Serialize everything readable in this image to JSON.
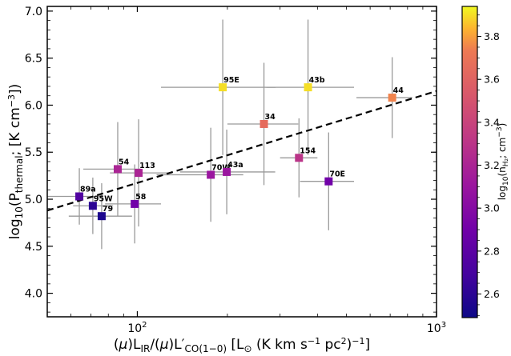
{
  "chart_data": {
    "type": "scatter",
    "x_scale": "log",
    "xlim": [
      50,
      1000
    ],
    "ylim": [
      3.75,
      7.05
    ],
    "xlabel": "(μ)L_IR/(μ)L′_CO(1−0) [L_⊙ (K km s^−1 pc^2)^−1]",
    "ylabel": "log10(P_thermal; [K cm^−3])",
    "x_tick_labels": [
      "10^2",
      "10^3"
    ],
    "x_ticks": [
      100,
      1000
    ],
    "y_ticks": [
      4.0,
      4.5,
      5.0,
      5.5,
      6.0,
      6.5,
      7.0
    ],
    "y_tick_labels": [
      "4.0",
      "4.5",
      "5.0",
      "5.5",
      "6.0",
      "6.5",
      "7.0"
    ],
    "colorbar": {
      "label": "log10(n_H2; cm^−3)",
      "range": [
        2.49,
        3.94
      ],
      "ticks": [
        2.6,
        2.8,
        3.0,
        3.2,
        3.4,
        3.6,
        3.8
      ],
      "tick_labels": [
        "2.6",
        "2.8",
        "3.0",
        "3.2",
        "3.4",
        "3.6",
        "3.8"
      ],
      "colormap": "plasma"
    },
    "fit_line": {
      "style": "dashed",
      "color": "#000000",
      "x": [
        50,
        1000
      ],
      "y": [
        4.88,
        6.15
      ]
    },
    "points": [
      {
        "label": "89a",
        "x": 64,
        "y": 5.03,
        "xerr": [
          14,
          12
        ],
        "yerr": [
          0.3,
          0.3
        ],
        "c": 2.75
      },
      {
        "label": "95W",
        "x": 71,
        "y": 4.93,
        "xerr": [
          10,
          12
        ],
        "yerr": [
          0.3,
          0.3
        ],
        "c": 2.6
      },
      {
        "label": "79",
        "x": 76,
        "y": 4.82,
        "xerr": [
          17,
          20
        ],
        "yerr": [
          0.35,
          0.35
        ],
        "c": 2.55
      },
      {
        "label": "58",
        "x": 98,
        "y": 4.95,
        "xerr": [
          20,
          22
        ],
        "yerr": [
          0.42,
          0.42
        ],
        "c": 2.9
      },
      {
        "label": "54",
        "x": 86,
        "y": 5.32,
        "xerr": [
          20,
          17
        ],
        "yerr": [
          0.5,
          0.5
        ],
        "c": 3.2
      },
      {
        "label": "113",
        "x": 101,
        "y": 5.28,
        "xerr": [
          20,
          30
        ],
        "yerr": [
          0.57,
          0.57
        ],
        "c": 3.2
      },
      {
        "label": "70W",
        "x": 176,
        "y": 5.26,
        "xerr": [
          60,
          50
        ],
        "yerr": [
          0.5,
          0.5
        ],
        "c": 3.1
      },
      {
        "label": "43a",
        "x": 199,
        "y": 5.29,
        "xerr": [
          60,
          90
        ],
        "yerr": [
          0.45,
          0.45
        ],
        "c": 3.1
      },
      {
        "label": "95E",
        "x": 193,
        "y": 6.19,
        "xerr": [
          73,
          97
        ],
        "yerr": [
          0.72,
          0.72
        ],
        "c": 3.9
      },
      {
        "label": "43b",
        "x": 372,
        "y": 6.19,
        "xerr": [
          102,
          158
        ],
        "yerr": [
          0.72,
          0.72
        ],
        "c": 3.9
      },
      {
        "label": "34",
        "x": 265,
        "y": 5.8,
        "xerr": [
          65,
          80
        ],
        "yerr": [
          0.65,
          0.65
        ],
        "c": 3.65
      },
      {
        "label": "154",
        "x": 347,
        "y": 5.44,
        "xerr": [
          47,
          53
        ],
        "yerr": [
          0.42,
          0.42
        ],
        "c": 3.3
      },
      {
        "label": "70E",
        "x": 436,
        "y": 5.19,
        "xerr": [
          86,
          94
        ],
        "yerr": [
          0.52,
          0.52
        ],
        "c": 2.9
      },
      {
        "label": "44",
        "x": 711,
        "y": 6.08,
        "xerr": [
          171,
          119
        ],
        "yerr": [
          0.43,
          0.43
        ],
        "c": 3.75
      }
    ]
  }
}
